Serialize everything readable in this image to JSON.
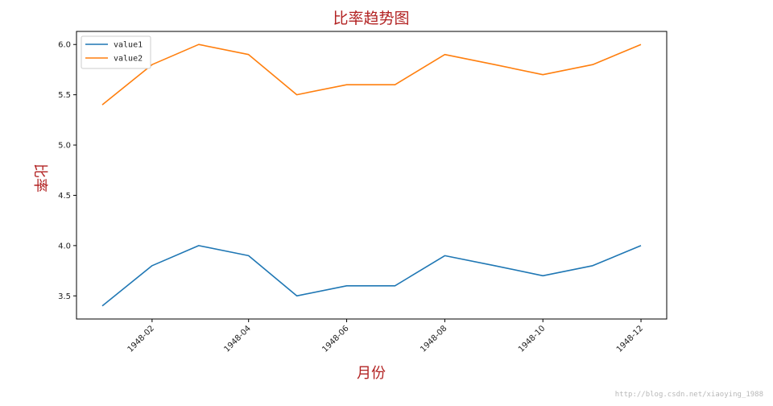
{
  "chart_data": {
    "type": "line",
    "title": "比率趋势图",
    "xlabel": "月份",
    "ylabel": "比率",
    "x": [
      "1948-01",
      "1948-02",
      "1948-03",
      "1948-04",
      "1948-05",
      "1948-06",
      "1948-07",
      "1948-08",
      "1948-09",
      "1948-10",
      "1948-11",
      "1948-12"
    ],
    "xlim": [
      "1947-12-16",
      "1948-12-17"
    ],
    "xticks": [
      {
        "date": "1948-02",
        "label": "1948-02"
      },
      {
        "date": "1948-04",
        "label": "1948-04"
      },
      {
        "date": "1948-06",
        "label": "1948-06"
      },
      {
        "date": "1948-08",
        "label": "1948-08"
      },
      {
        "date": "1948-10",
        "label": "1948-10"
      },
      {
        "date": "1948-12",
        "label": "1948-12"
      }
    ],
    "ylim": [
      3.27,
      6.13
    ],
    "yticks": [
      3.5,
      4.0,
      4.5,
      5.0,
      5.5,
      6.0
    ],
    "ytick_labels": [
      "3.5",
      "4.0",
      "4.5",
      "5.0",
      "5.5",
      "6.0"
    ],
    "grid": false,
    "legend": "upper-left",
    "series": [
      {
        "name": "value1",
        "color": "#1f77b4",
        "values": [
          3.4,
          3.8,
          4.0,
          3.9,
          3.5,
          3.6,
          3.6,
          3.9,
          3.8,
          3.7,
          3.8,
          4.0
        ]
      },
      {
        "name": "value2",
        "color": "#ff7f0e",
        "values": [
          5.4,
          5.8,
          6.0,
          5.9,
          5.5,
          5.6,
          5.6,
          5.9,
          5.8,
          5.7,
          5.8,
          6.0
        ]
      }
    ]
  },
  "watermark": "http://blog.csdn.net/xiaoying_1988"
}
